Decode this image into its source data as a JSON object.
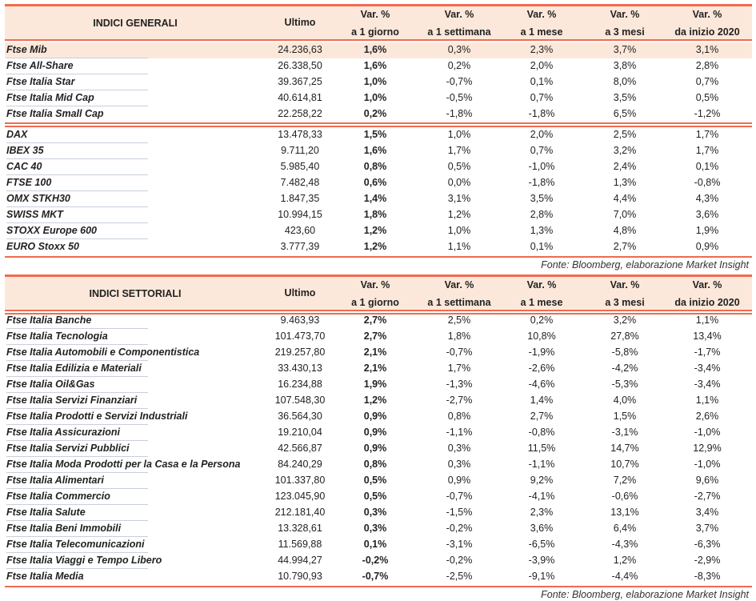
{
  "columns": [
    "Ultimo",
    "Var. %|a 1 giorno",
    "Var. %|a 1 settimana",
    "Var. %|a 1 mese",
    "Var. %|a 3 mesi",
    "Var. %|da inizio 2020"
  ],
  "source": "Fonte: Bloomberg, elaborazione Market Insight",
  "accent_color": "#f06a50",
  "header_bg": "#fce8da",
  "general": {
    "title": "INDICI GENERALI",
    "groups": [
      [
        [
          "Ftse Mib",
          "24.236,63",
          "1,6%",
          "0,3%",
          "2,3%",
          "3,7%",
          "3,1%"
        ],
        [
          "Ftse All-Share",
          "26.338,50",
          "1,6%",
          "0,2%",
          "2,0%",
          "3,8%",
          "2,8%"
        ],
        [
          "Ftse Italia Star",
          "39.367,25",
          "1,0%",
          "-0,7%",
          "0,1%",
          "8,0%",
          "0,7%"
        ],
        [
          "Ftse Italia Mid Cap",
          "40.614,81",
          "1,0%",
          "-0,5%",
          "0,7%",
          "3,5%",
          "0,5%"
        ],
        [
          "Ftse Italia Small Cap",
          "22.258,22",
          "0,2%",
          "-1,8%",
          "-1,8%",
          "6,5%",
          "-1,2%"
        ]
      ],
      [
        [
          "DAX",
          "13.478,33",
          "1,5%",
          "1,0%",
          "2,0%",
          "2,5%",
          "1,7%"
        ],
        [
          "IBEX 35",
          "9.711,20",
          "1,6%",
          "1,7%",
          "0,7%",
          "3,2%",
          "1,7%"
        ],
        [
          "CAC 40",
          "5.985,40",
          "0,8%",
          "0,5%",
          "-1,0%",
          "2,4%",
          "0,1%"
        ],
        [
          "FTSE 100",
          "7.482,48",
          "0,6%",
          "0,0%",
          "-1,8%",
          "1,3%",
          "-0,8%"
        ],
        [
          "OMX STKH30",
          "1.847,35",
          "1,4%",
          "3,1%",
          "3,5%",
          "4,4%",
          "4,3%"
        ],
        [
          "SWISS MKT",
          "10.994,15",
          "1,8%",
          "1,2%",
          "2,8%",
          "7,0%",
          "3,6%"
        ],
        [
          "STOXX Europe 600",
          "423,60",
          "1,2%",
          "1,0%",
          "1,3%",
          "4,8%",
          "1,9%"
        ],
        [
          "EURO Stoxx 50",
          "3.777,39",
          "1,2%",
          "1,1%",
          "0,1%",
          "2,7%",
          "0,9%"
        ]
      ]
    ]
  },
  "sector": {
    "title": "INDICI SETTORIALI",
    "groups": [
      [
        [
          "Ftse Italia Banche",
          "9.463,93",
          "2,7%",
          "2,5%",
          "0,2%",
          "3,2%",
          "1,1%"
        ],
        [
          "Ftse Italia Tecnologia",
          "101.473,70",
          "2,7%",
          "1,8%",
          "10,8%",
          "27,8%",
          "13,4%"
        ],
        [
          "Ftse Italia Automobili e Componentistica",
          "219.257,80",
          "2,1%",
          "-0,7%",
          "-1,9%",
          "-5,8%",
          "-1,7%"
        ],
        [
          "Ftse Italia Edilizia e Materiali",
          "33.430,13",
          "2,1%",
          "1,7%",
          "-2,6%",
          "-4,2%",
          "-3,4%"
        ],
        [
          "Ftse Italia Oil&Gas",
          "16.234,88",
          "1,9%",
          "-1,3%",
          "-4,6%",
          "-5,3%",
          "-3,4%"
        ],
        [
          "Ftse Italia Servizi Finanziari",
          "107.548,30",
          "1,2%",
          "-2,7%",
          "1,4%",
          "4,0%",
          "1,1%"
        ],
        [
          "Ftse Italia Prodotti e Servizi Industriali",
          "36.564,30",
          "0,9%",
          "0,8%",
          "2,7%",
          "1,5%",
          "2,6%"
        ],
        [
          "Ftse Italia Assicurazioni",
          "19.210,04",
          "0,9%",
          "-1,1%",
          "-0,8%",
          "-3,1%",
          "-1,0%"
        ],
        [
          "Ftse Italia Servizi Pubblici",
          "42.566,87",
          "0,9%",
          "0,3%",
          "11,5%",
          "14,7%",
          "12,9%"
        ],
        [
          "Ftse Italia Moda Prodotti per la Casa e la Persona",
          "84.240,29",
          "0,8%",
          "0,3%",
          "-1,1%",
          "10,7%",
          "-1,0%"
        ],
        [
          "Ftse Italia Alimentari",
          "101.337,80",
          "0,5%",
          "0,9%",
          "9,2%",
          "7,2%",
          "9,6%"
        ],
        [
          "Ftse Italia Commercio",
          "123.045,90",
          "0,5%",
          "-0,7%",
          "-4,1%",
          "-0,6%",
          "-2,7%"
        ],
        [
          "Ftse Italia Salute",
          "212.181,40",
          "0,3%",
          "-1,5%",
          "2,3%",
          "13,1%",
          "3,4%"
        ],
        [
          "Ftse Italia Beni Immobili",
          "13.328,61",
          "0,3%",
          "-0,2%",
          "3,6%",
          "6,4%",
          "3,7%"
        ],
        [
          "Ftse Italia Telecomunicazioni",
          "11.569,88",
          "0,1%",
          "-3,1%",
          "-6,5%",
          "-4,3%",
          "-6,3%"
        ],
        [
          "Ftse Italia Viaggi e Tempo Libero",
          "44.994,27",
          "-0,2%",
          "-0,2%",
          "-3,9%",
          "1,2%",
          "-2,9%"
        ],
        [
          "Ftse Italia Media",
          "10.790,93",
          "-0,7%",
          "-2,5%",
          "-9,1%",
          "-4,4%",
          "-8,3%"
        ]
      ]
    ]
  }
}
